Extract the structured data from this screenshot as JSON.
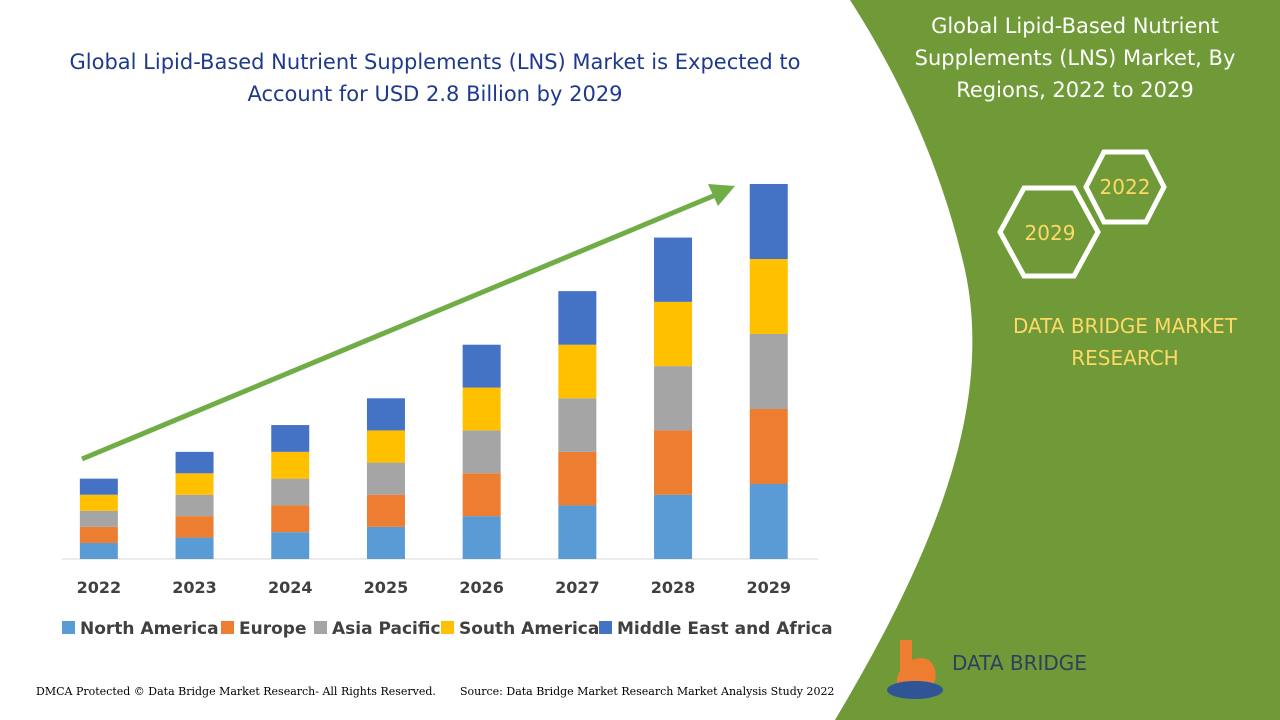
{
  "chart_data": {
    "type": "stacked-bar",
    "title": "Global Lipid-Based Nutrient Supplements (LNS) Market is Expected to Account for USD 2.8 Billion by 2029",
    "categories": [
      "2022",
      "2023",
      "2024",
      "2025",
      "2026",
      "2027",
      "2028",
      "2029"
    ],
    "series": [
      {
        "name": "North America",
        "color": "#5b9bd5",
        "values": [
          0.12,
          0.16,
          0.2,
          0.24,
          0.32,
          0.4,
          0.48,
          0.56
        ]
      },
      {
        "name": "Europe",
        "color": "#ed7d31",
        "values": [
          0.12,
          0.16,
          0.2,
          0.24,
          0.32,
          0.4,
          0.48,
          0.56
        ]
      },
      {
        "name": "Asia Pacific",
        "color": "#a5a5a5",
        "values": [
          0.12,
          0.16,
          0.2,
          0.24,
          0.32,
          0.4,
          0.48,
          0.56
        ]
      },
      {
        "name": "South America",
        "color": "#ffc000",
        "values": [
          0.12,
          0.16,
          0.2,
          0.24,
          0.32,
          0.4,
          0.48,
          0.56
        ]
      },
      {
        "name": "Middle East and Africa",
        "color": "#4472c4",
        "values": [
          0.12,
          0.16,
          0.2,
          0.24,
          0.32,
          0.4,
          0.48,
          0.56
        ]
      }
    ]
  },
  "panel": {
    "title": "Global Lipid-Based Nutrient Supplements (LNS) Market, By Regions, 2022 to 2029",
    "hexagons": [
      "2022",
      "2029"
    ],
    "brand": "DATA BRIDGE MARKET RESEARCH",
    "logo": "DATA BRIDGE"
  },
  "footer": {
    "left": "DMCA Protected © Data Bridge Market Research- All Rights Reserved.",
    "right": "Source: Data Bridge Market Research Market Analysis Study 2022"
  }
}
